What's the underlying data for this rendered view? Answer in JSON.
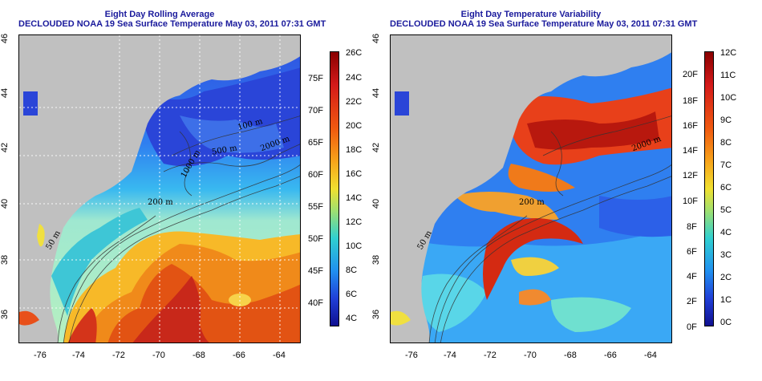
{
  "left_panel": {
    "title_line1": "Eight Day Rolling Average",
    "title_line2": "DECLOUDED NOAA 19 Sea Surface Temperature May 03, 2011 07:31 GMT",
    "lat_labels": [
      "46",
      "44",
      "42",
      "40",
      "38",
      "36"
    ],
    "lon_labels": [
      "-76",
      "-74",
      "-72",
      "-70",
      "-68",
      "-66",
      "-64"
    ],
    "contour_labels": [
      "100 m",
      "200 m",
      "50 m",
      "1000 m",
      "2000 m",
      "500 m"
    ],
    "colorbar_c": [
      "26C",
      "24C",
      "22C",
      "20C",
      "18C",
      "16C",
      "14C",
      "12C",
      "10C",
      "8C",
      "6C",
      "4C"
    ],
    "colorbar_f": [
      "75F",
      "70F",
      "65F",
      "60F",
      "55F",
      "50F",
      "45F",
      "40F"
    ]
  },
  "right_panel": {
    "title_line1": "Eight Day Temperature Variability",
    "title_line2": "DECLOUDED NOAA 19 Sea Surface Temperature May 03, 2011 07:31 GMT",
    "lat_labels": [
      "46",
      "44",
      "42",
      "40",
      "38",
      "36"
    ],
    "lon_labels": [
      "-76",
      "-74",
      "-72",
      "-70",
      "-68",
      "-66",
      "-64"
    ],
    "contour_labels": [
      "200 m",
      "50 m",
      "2000 m"
    ],
    "colorbar_c": [
      "12C",
      "11C",
      "10C",
      "9C",
      "8C",
      "7C",
      "6C",
      "5C",
      "4C",
      "3C",
      "2C",
      "1C",
      "0C"
    ],
    "colorbar_f": [
      "20F",
      "18F",
      "16F",
      "14F",
      "12F",
      "10F",
      "8F",
      "6F",
      "4F",
      "2F",
      "0F"
    ]
  },
  "colors": {
    "title": "#1a1a9c",
    "land": "#c0c0c0"
  }
}
